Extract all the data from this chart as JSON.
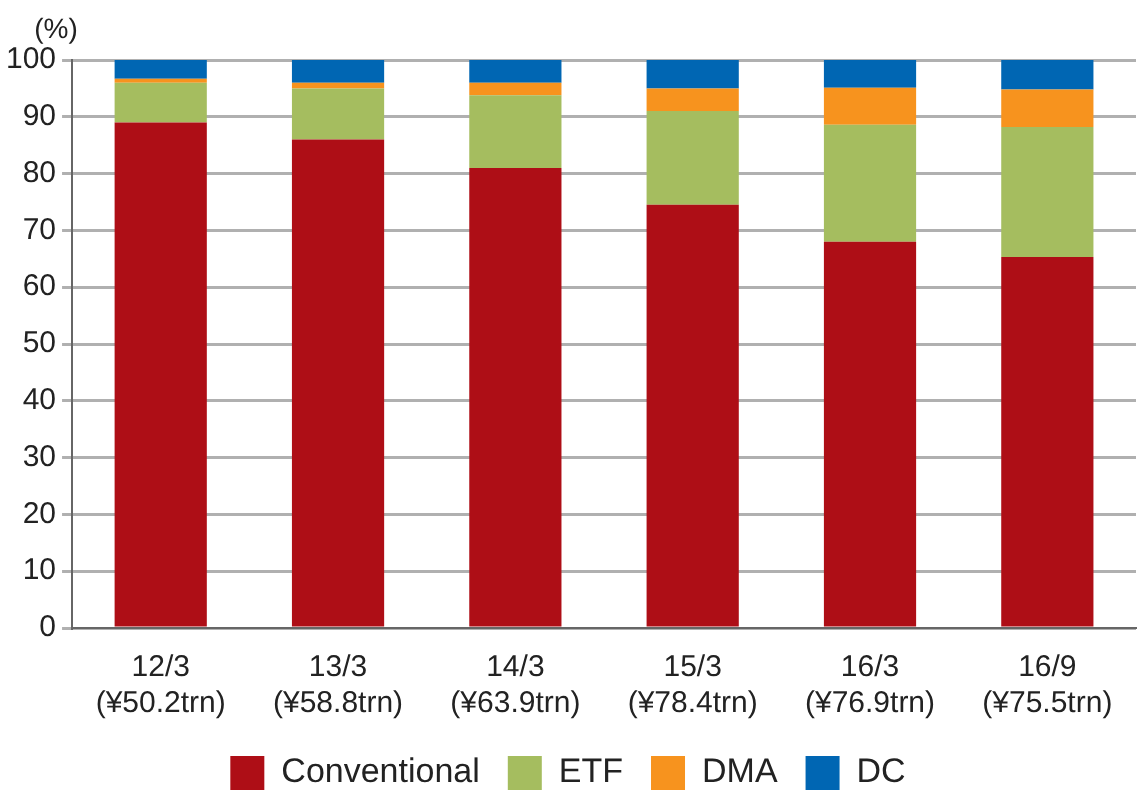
{
  "chart_data": {
    "type": "bar",
    "stacked": true,
    "ylabel": "(%)",
    "categories": [
      "12/3\n(¥50.2trn)",
      "13/3\n(¥58.8trn)",
      "14/3\n(¥63.9trn)",
      "15/3\n(¥78.4trn)",
      "16/3\n(¥76.9trn)",
      "16/9\n(¥75.5trn)"
    ],
    "series": [
      {
        "name": "Conventional",
        "color": "#ae0e16",
        "values": [
          89,
          86,
          81,
          74.5,
          68,
          65.3
        ]
      },
      {
        "name": "ETF",
        "color": "#a5bd5f",
        "values": [
          7,
          9,
          12.8,
          16.5,
          20.6,
          22.9
        ]
      },
      {
        "name": "DMA",
        "color": "#f7931e",
        "values": [
          0.7,
          1,
          2.2,
          4,
          6.5,
          6.6
        ]
      },
      {
        "name": "DC",
        "color": "#0066b3",
        "values": [
          3.3,
          4,
          4,
          5,
          4.9,
          5.2
        ]
      }
    ],
    "ylim": [
      0,
      100
    ],
    "yticks": [
      0,
      10,
      20,
      30,
      40,
      50,
      60,
      70,
      80,
      90,
      100
    ],
    "grid": "y",
    "legend": "bottom"
  }
}
